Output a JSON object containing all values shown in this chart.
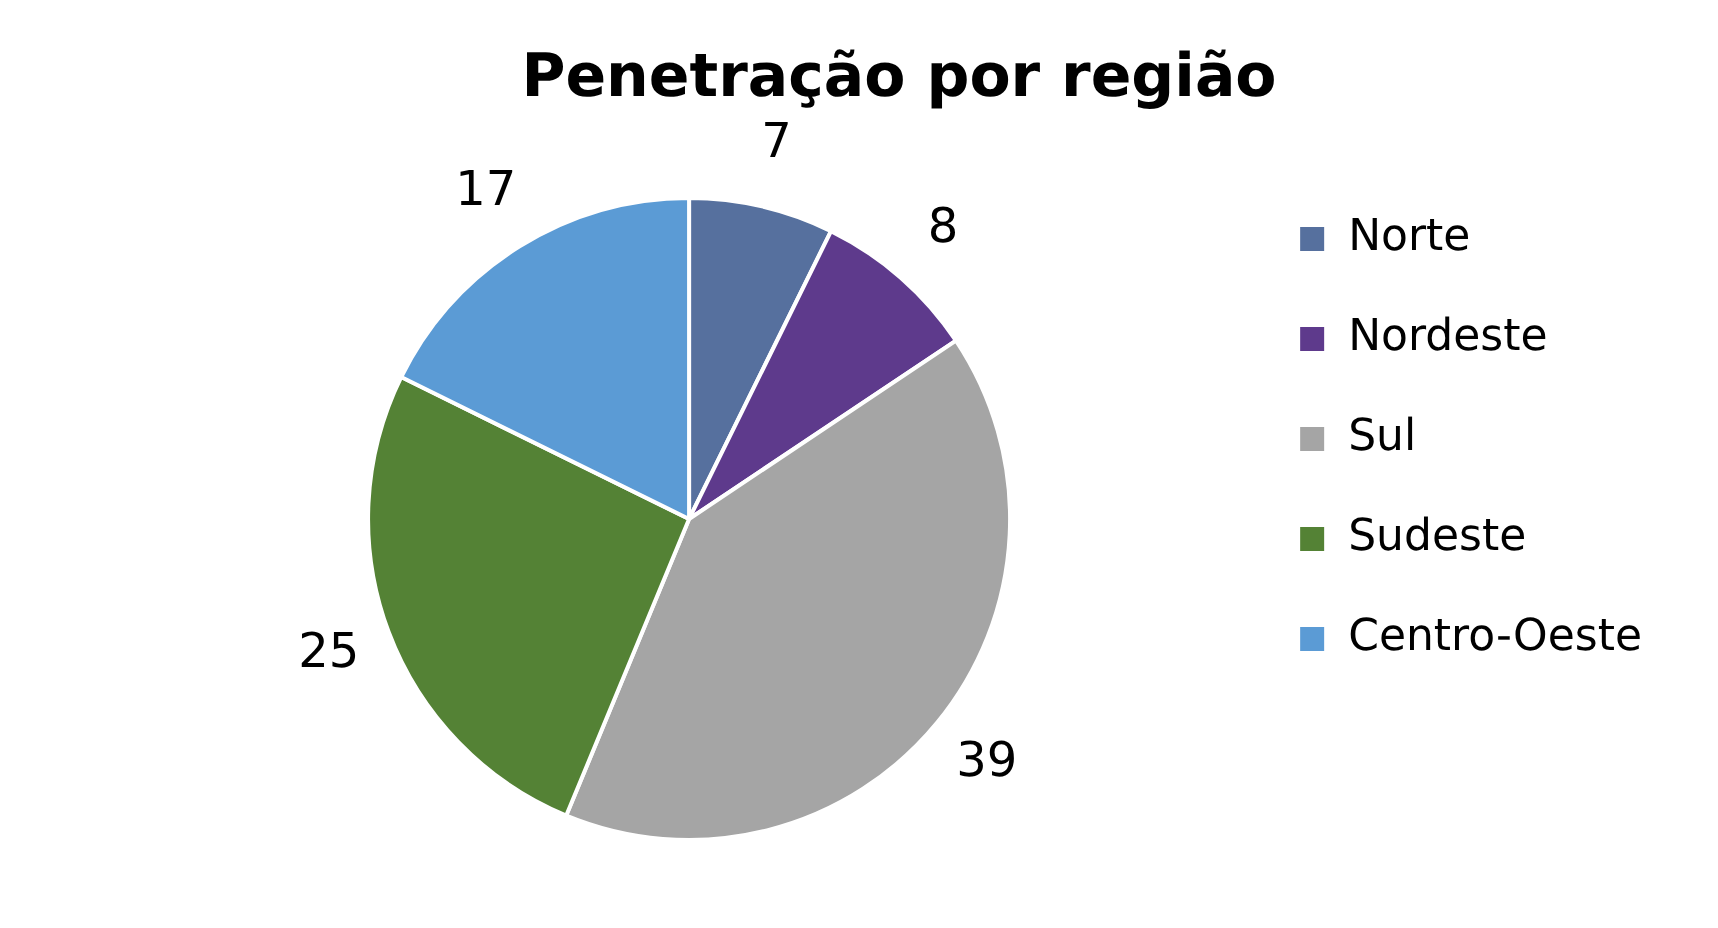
{
  "chart_data": {
    "type": "pie",
    "title": "Penetração por região",
    "categories": [
      "Norte",
      "Nordeste",
      "Sul",
      "Sudeste",
      "Centro-Oeste"
    ],
    "values": [
      7,
      8,
      39,
      25,
      17
    ],
    "colors": [
      "#56709e",
      "#5e3a8c",
      "#a5a5a5",
      "#548235",
      "#5b9bd5"
    ],
    "data_labels": true,
    "legend": "right"
  }
}
